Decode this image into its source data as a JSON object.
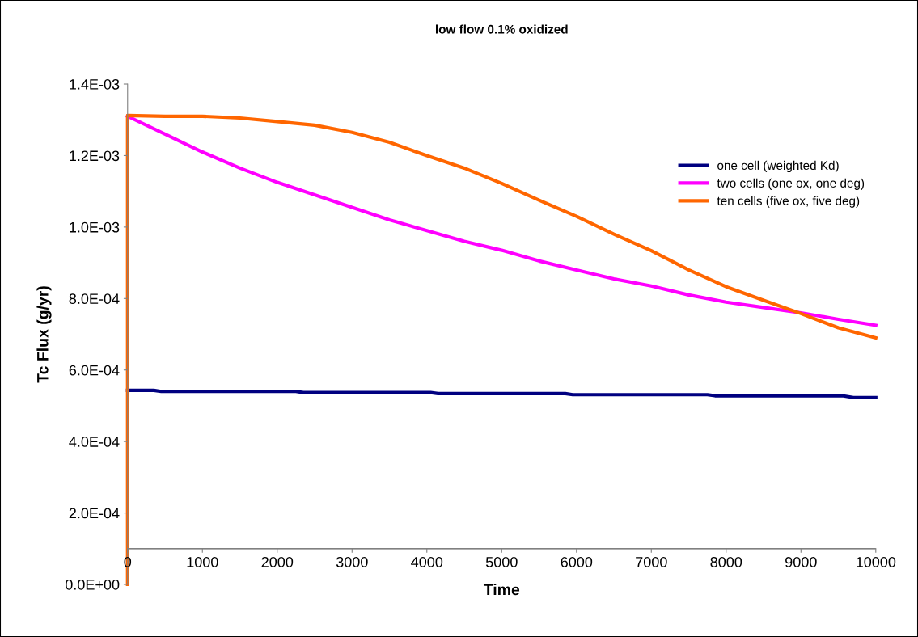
{
  "chart_data": {
    "type": "line",
    "title": "low flow 0.1% oxidized",
    "xlabel": "Time",
    "ylabel": "Tc Flux (g/yr)",
    "xlim": [
      0,
      10000
    ],
    "xticks": [
      0,
      1000,
      2000,
      3000,
      4000,
      5000,
      6000,
      7000,
      8000,
      9000,
      10000
    ],
    "ylim": [
      0,
      0.0014
    ],
    "yticks": [
      {
        "value": 0,
        "label": "0.0E+00"
      },
      {
        "value": 0.0002,
        "label": "2.0E-04"
      },
      {
        "value": 0.0004,
        "label": "4.0E-04"
      },
      {
        "value": 0.0006,
        "label": "6.0E-04"
      },
      {
        "value": 0.0008,
        "label": "8.0E-04"
      },
      {
        "value": 0.001,
        "label": "1.0E-03"
      },
      {
        "value": 0.0012,
        "label": "1.2E-03"
      },
      {
        "value": 0.0014,
        "label": "1.4E-03"
      }
    ],
    "ref_lines": [
      {
        "axis": "y",
        "value": 0.0001,
        "color": "#808080"
      }
    ],
    "grid": false,
    "legend": "right",
    "marker": "none",
    "line_style": "solid",
    "series": [
      {
        "name": "one cell (weighted Kd)",
        "color": "#000080",
        "x": [
          0,
          350,
          450,
          2250,
          2350,
          4050,
          4150,
          5850,
          5950,
          7750,
          7850,
          9550,
          9700,
          10000
        ],
        "values": [
          0.000543,
          0.000543,
          0.00054,
          0.00054,
          0.000537,
          0.000537,
          0.000534,
          0.000534,
          0.000531,
          0.000531,
          0.000528,
          0.000528,
          0.000523,
          0.000523
        ]
      },
      {
        "name": "two cells (one ox, one deg)",
        "color": "#ff00ff",
        "x": [
          0,
          500,
          1000,
          1500,
          2000,
          2500,
          3000,
          3500,
          4000,
          4500,
          5000,
          5500,
          6000,
          6500,
          7000,
          7500,
          8000,
          8500,
          9000,
          9500,
          10000
        ],
        "values": [
          0.00131,
          0.00126,
          0.00121,
          0.001165,
          0.001125,
          0.00109,
          0.001055,
          0.00102,
          0.00099,
          0.00096,
          0.000935,
          0.000905,
          0.00088,
          0.000855,
          0.000835,
          0.00081,
          0.00079,
          0.000775,
          0.00076,
          0.000742,
          0.000725
        ]
      },
      {
        "name": "ten cells (five ox, five deg)",
        "color": "#ff6600",
        "x": [
          0,
          0,
          500,
          1000,
          1500,
          2000,
          2500,
          3000,
          3500,
          4000,
          4500,
          5000,
          5500,
          6000,
          6500,
          7000,
          7500,
          8000,
          8500,
          9000,
          9500,
          10000
        ],
        "values": [
          0.0,
          0.001312,
          0.00131,
          0.00131,
          0.001305,
          0.001295,
          0.001285,
          0.001265,
          0.001237,
          0.0012,
          0.001165,
          0.001122,
          0.001075,
          0.00103,
          0.00098,
          0.000934,
          0.00088,
          0.000833,
          0.000795,
          0.000758,
          0.000718,
          0.00069
        ]
      }
    ]
  }
}
